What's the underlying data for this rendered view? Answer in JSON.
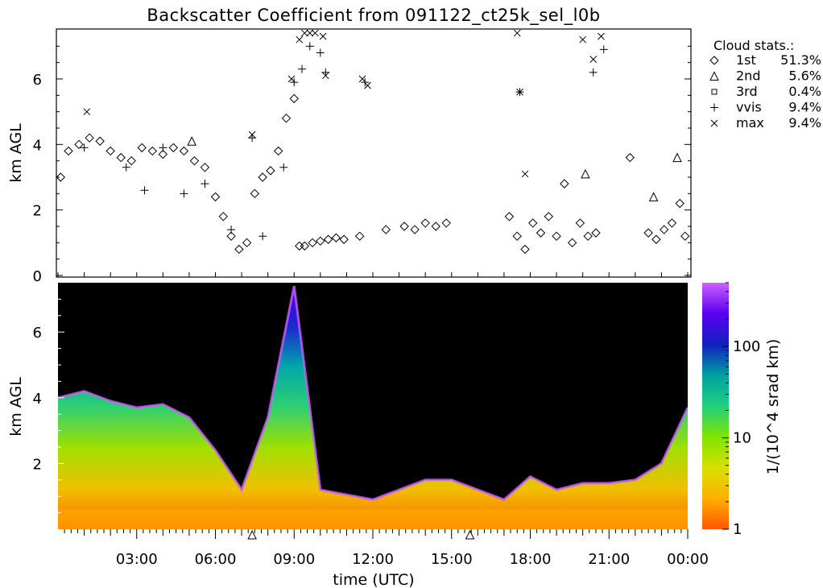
{
  "chart_data": [
    {
      "type": "scatter",
      "title": "Backscatter Coefficient from 091122_ct25k_sel_l0b",
      "ylabel": "km AGL",
      "ylim": [
        0,
        7.5
      ],
      "yticks": [
        "0",
        "2",
        "4",
        "6"
      ],
      "legend": {
        "title": "Cloud stats.:",
        "placement": "right",
        "entries": [
          {
            "symbol": "diamond",
            "glyph": "◇",
            "label": "1st",
            "value": "51.3%"
          },
          {
            "symbol": "triangle",
            "glyph": "△",
            "label": "2nd",
            "value": "5.6%"
          },
          {
            "symbol": "square",
            "glyph": "□",
            "label": "3rd",
            "value": "0.4%"
          },
          {
            "symbol": "plus",
            "glyph": "+",
            "label": "vvis",
            "value": "9.4%"
          },
          {
            "symbol": "cross",
            "glyph": "×",
            "label": "max",
            "value": "9.4%"
          }
        ]
      },
      "series": [
        {
          "symbol": "diamond",
          "x": [
            0.1,
            0.4,
            0.8,
            1.2,
            1.6,
            2.0,
            2.4,
            2.8,
            3.2,
            3.6,
            4.0,
            4.4,
            4.8,
            5.2,
            5.6,
            6.0,
            6.3,
            6.6,
            6.9,
            7.2,
            7.5,
            7.8,
            8.1,
            8.4,
            8.7,
            9.0,
            9.2,
            9.4,
            9.7,
            10.0,
            10.3,
            10.6,
            10.9,
            11.5,
            12.5,
            13.2,
            13.6,
            14.0,
            14.4,
            14.8,
            17.2,
            17.5,
            17.8,
            18.1,
            18.4,
            18.7,
            19.0,
            19.3,
            19.6,
            19.9,
            20.2,
            20.5,
            21.8,
            22.5,
            22.8,
            23.1,
            23.4,
            23.7,
            23.9
          ],
          "y": [
            3.0,
            3.8,
            4.0,
            4.2,
            4.1,
            3.8,
            3.6,
            3.5,
            3.9,
            3.8,
            3.7,
            3.9,
            3.8,
            3.5,
            3.3,
            2.4,
            1.8,
            1.2,
            0.8,
            1.0,
            2.5,
            3.0,
            3.2,
            3.8,
            4.8,
            5.4,
            0.9,
            0.9,
            1.0,
            1.05,
            1.1,
            1.15,
            1.1,
            1.2,
            1.4,
            1.5,
            1.4,
            1.6,
            1.5,
            1.6,
            1.8,
            1.2,
            0.8,
            1.6,
            1.3,
            1.8,
            1.2,
            2.8,
            1.0,
            1.6,
            1.2,
            1.3,
            3.6,
            1.3,
            1.1,
            1.4,
            1.6,
            2.2,
            1.2
          ]
        },
        {
          "symbol": "triangle",
          "x": [
            5.1,
            20.1,
            22.7,
            23.6
          ],
          "y": [
            4.1,
            3.1,
            2.4,
            3.6
          ]
        },
        {
          "symbol": "plus",
          "x": [
            1.0,
            2.6,
            3.3,
            4.0,
            4.8,
            5.6,
            6.6,
            7.4,
            7.8,
            8.6,
            9.0,
            9.3,
            9.6,
            10.0,
            10.2,
            11.7,
            17.6,
            20.4,
            20.8
          ],
          "y": [
            3.9,
            3.3,
            2.6,
            3.9,
            2.5,
            2.8,
            1.4,
            4.2,
            1.2,
            3.3,
            5.9,
            6.3,
            7.0,
            6.8,
            6.2,
            5.9,
            5.6,
            6.2,
            6.9
          ]
        },
        {
          "symbol": "cross",
          "x": [
            1.1,
            7.4,
            8.9,
            9.2,
            9.4,
            9.6,
            9.8,
            10.1,
            10.2,
            11.6,
            11.8,
            17.5,
            17.6,
            17.8,
            20.0,
            20.4,
            20.7
          ],
          "y": [
            5.0,
            4.3,
            6.0,
            7.2,
            7.4,
            7.4,
            7.4,
            7.3,
            6.1,
            6.0,
            5.8,
            7.4,
            5.6,
            3.1,
            7.2,
            6.6,
            7.3
          ]
        }
      ]
    },
    {
      "type": "heatmap",
      "xlabel": "time (UTC)",
      "ylabel": "km AGL",
      "ylim": [
        0,
        7.5
      ],
      "yticks": [
        "2",
        "4",
        "6"
      ],
      "xticks": [
        "03:00",
        "06:00",
        "09:00",
        "12:00",
        "15:00",
        "18:00",
        "21:00",
        "00:00"
      ],
      "xtick_hours": [
        3,
        6,
        9,
        12,
        15,
        18,
        21,
        24
      ],
      "colorbar": {
        "label": "1/(10^4 srad km)",
        "scale": "log",
        "range": [
          1,
          500
        ],
        "ticks": [
          "1",
          "10",
          "100"
        ],
        "tick_values": [
          1,
          10,
          100
        ],
        "colors": [
          "#ff5500",
          "#ffb000",
          "#d8e000",
          "#7ee400",
          "#20d080",
          "#00a0a0",
          "#1020c0",
          "#5a00f0",
          "#cc60ff"
        ]
      },
      "background_color": "#000000",
      "layer_top_km": [
        [
          0,
          4.0
        ],
        [
          1,
          4.2
        ],
        [
          2,
          3.9
        ],
        [
          3,
          3.7
        ],
        [
          4,
          3.8
        ],
        [
          5,
          3.4
        ],
        [
          6,
          2.4
        ],
        [
          7,
          1.2
        ],
        [
          8,
          3.4
        ],
        [
          9,
          7.4
        ],
        [
          10,
          1.2
        ],
        [
          12,
          0.9
        ],
        [
          14,
          1.5
        ],
        [
          15,
          1.5
        ],
        [
          17,
          0.9
        ],
        [
          18,
          1.6
        ],
        [
          19,
          1.2
        ],
        [
          20,
          1.4
        ],
        [
          21,
          1.4
        ],
        [
          22,
          1.5
        ],
        [
          23,
          2.0
        ],
        [
          24,
          3.7
        ]
      ],
      "markers": [
        {
          "symbol": "triangle",
          "hour": 7.4
        },
        {
          "symbol": "triangle",
          "hour": 15.7
        }
      ]
    }
  ]
}
